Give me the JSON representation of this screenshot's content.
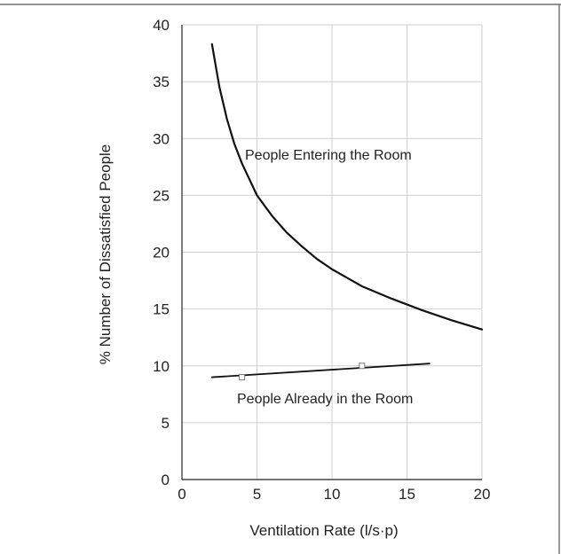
{
  "chart_data": {
    "type": "line",
    "title": "",
    "xlabel": "Ventilation Rate (l/s·p)",
    "ylabel": "% Number of Dissatisfied People",
    "xlim": [
      0,
      20
    ],
    "ylim": [
      0,
      40
    ],
    "x_ticks": [
      "0",
      "5",
      "10",
      "15",
      "20"
    ],
    "y_ticks": [
      "0",
      "5",
      "10",
      "15",
      "20",
      "25",
      "30",
      "35",
      "40"
    ],
    "grid": true,
    "series": [
      {
        "name": "People Entering the Room",
        "x": [
          2,
          2.5,
          3,
          3.5,
          4,
          5,
          6,
          7,
          8,
          9,
          10,
          12,
          14,
          16,
          18,
          20
        ],
        "y": [
          38.3,
          34.5,
          31.7,
          29.5,
          27.8,
          25.0,
          23.2,
          21.7,
          20.5,
          19.4,
          18.5,
          17.0,
          15.9,
          14.9,
          14.0,
          13.2
        ],
        "color": "#111111",
        "markers": false
      },
      {
        "name": "People Already in the Room",
        "x": [
          2,
          16.5
        ],
        "y": [
          9.0,
          10.2
        ],
        "color": "#111111",
        "markers": false
      }
    ],
    "measured_points": {
      "x": [
        4,
        12
      ],
      "y": [
        9.0,
        10.0
      ]
    }
  }
}
